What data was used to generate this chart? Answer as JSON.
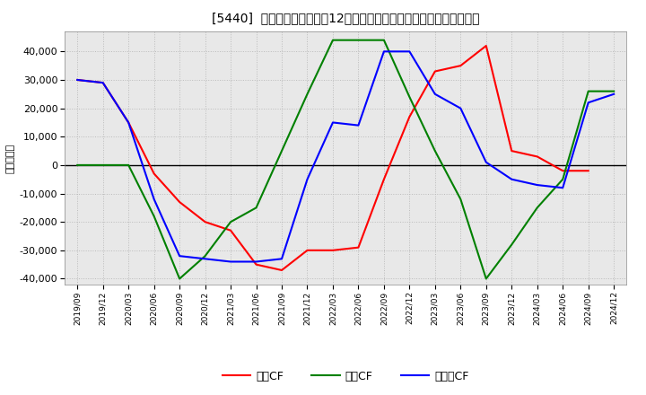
{
  "title": "[5440]  キャッシュフローの12か月移動合計の対前年同期増減額の推移",
  "ylabel": "（百万円）",
  "xlabels": [
    "2019/09",
    "2019/12",
    "2020/03",
    "2020/06",
    "2020/09",
    "2020/12",
    "2021/03",
    "2021/06",
    "2021/09",
    "2021/12",
    "2022/03",
    "2022/06",
    "2022/09",
    "2022/12",
    "2023/03",
    "2023/06",
    "2023/09",
    "2023/12",
    "2024/03",
    "2024/06",
    "2024/09",
    "2024/12"
  ],
  "operating_cf": [
    30000,
    29000,
    15000,
    -3000,
    -13000,
    -20000,
    -23000,
    -35000,
    -37000,
    -30000,
    -30000,
    -29000,
    -5000,
    17000,
    33000,
    35000,
    42000,
    5000,
    3000,
    -2000,
    -2000,
    null
  ],
  "investing_cf": [
    0,
    0,
    0,
    -18000,
    -40000,
    -32000,
    -20000,
    -15000,
    5000,
    25000,
    44000,
    44000,
    44000,
    24000,
    5000,
    -12000,
    -40000,
    -28000,
    -15000,
    -5000,
    26000,
    26000
  ],
  "free_cf": [
    30000,
    29000,
    15000,
    -12000,
    -32000,
    -33000,
    -34000,
    -34000,
    -33000,
    -5000,
    15000,
    14000,
    40000,
    40000,
    25000,
    20000,
    1000,
    -5000,
    -7000,
    -8000,
    22000,
    25000
  ],
  "operating_color": "#ff0000",
  "investing_color": "#008000",
  "free_color": "#0000ff",
  "ylim": [
    -42000,
    47000
  ],
  "yticks": [
    -40000,
    -30000,
    -20000,
    -10000,
    0,
    10000,
    20000,
    30000,
    40000
  ],
  "plot_bg_color": "#e8e8e8",
  "background_color": "#ffffff",
  "grid_color": "#bbbbbb",
  "legend_labels": [
    "営業CF",
    "投資CF",
    "フリーCF"
  ]
}
